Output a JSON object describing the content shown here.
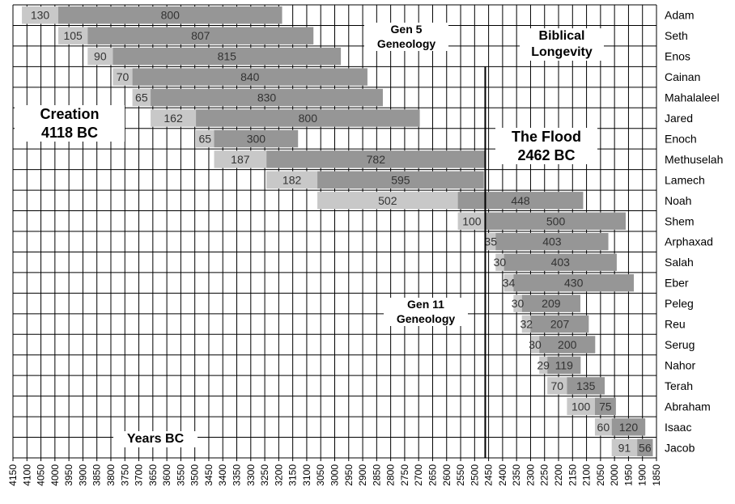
{
  "chart_data": {
    "type": "bar",
    "subtype": "horizontal-stacked-timeline",
    "x_axis": {
      "min": 1850,
      "max": 4150,
      "reversed": true,
      "step": 50,
      "title": "Years BC",
      "tick_labels": [
        "4150",
        "4100",
        "4050",
        "4000",
        "3950",
        "3900",
        "3850",
        "3800",
        "3750",
        "3700",
        "3650",
        "3600",
        "3550",
        "3500",
        "3450",
        "3400",
        "3350",
        "3300",
        "3250",
        "3200",
        "3150",
        "3100",
        "3050",
        "3000",
        "2950",
        "2900",
        "2850",
        "2800",
        "2750",
        "2700",
        "2650",
        "2600",
        "2550",
        "2500",
        "2450",
        "2400",
        "2350",
        "2300",
        "2250",
        "2200",
        "2150",
        "2100",
        "2050",
        "2000",
        "1950",
        "1900",
        "1850"
      ]
    },
    "grid": true,
    "segment_colors": {
      "before_first_son": "#c8c8c8",
      "remaining_life": "#969696"
    },
    "series_meaning": [
      "age at son's birth",
      "years lived after"
    ],
    "rows": [
      {
        "name": "Adam",
        "start": 4118,
        "before": 130,
        "after": 800
      },
      {
        "name": "Seth",
        "start": 3988,
        "before": 105,
        "after": 807
      },
      {
        "name": "Enos",
        "start": 3883,
        "before": 90,
        "after": 815
      },
      {
        "name": "Cainan",
        "start": 3793,
        "before": 70,
        "after": 840
      },
      {
        "name": "Mahalaleel",
        "start": 3723,
        "before": 65,
        "after": 830
      },
      {
        "name": "Jared",
        "start": 3658,
        "before": 162,
        "after": 800
      },
      {
        "name": "Enoch",
        "start": 3496,
        "before": 65,
        "after": 300
      },
      {
        "name": "Methuselah",
        "start": 3431,
        "before": 187,
        "after": 782
      },
      {
        "name": "Lamech",
        "start": 3244,
        "before": 182,
        "after": 595
      },
      {
        "name": "Noah",
        "start": 3062,
        "before": 502,
        "after": 448
      },
      {
        "name": "Shem",
        "start": 2560,
        "before": 100,
        "after": 500
      },
      {
        "name": "Arphaxad",
        "start": 2460,
        "before": 35,
        "after": 403
      },
      {
        "name": "Salah",
        "start": 2425,
        "before": 30,
        "after": 403
      },
      {
        "name": "Eber",
        "start": 2395,
        "before": 34,
        "after": 430
      },
      {
        "name": "Peleg",
        "start": 2361,
        "before": 30,
        "after": 209
      },
      {
        "name": "Reu",
        "start": 2331,
        "before": 32,
        "after": 207
      },
      {
        "name": "Serug",
        "start": 2299,
        "before": 30,
        "after": 200
      },
      {
        "name": "Nahor",
        "start": 2269,
        "before": 29,
        "after": 119
      },
      {
        "name": "Terah",
        "start": 2240,
        "before": 70,
        "after": 135
      },
      {
        "name": "Abraham",
        "start": 2170,
        "before": 100,
        "after": 75
      },
      {
        "name": "Isaac",
        "start": 2070,
        "before": 60,
        "after": 120
      },
      {
        "name": "Jacob",
        "start": 2010,
        "before": 91,
        "after": 56
      }
    ],
    "flood_line_year": 2462
  },
  "annotations": {
    "gen5": {
      "line1": "Gen 5",
      "line2": "Geneology"
    },
    "title": {
      "line1": "Biblical",
      "line2": "Longevity"
    },
    "creation": {
      "line1": "Creation",
      "line2": "4118 BC"
    },
    "flood": {
      "line1": "The Flood",
      "line2": "2462 BC"
    },
    "gen11": {
      "line1": "Gen 11",
      "line2": "Geneology"
    },
    "years": {
      "line1": "Years BC"
    }
  }
}
